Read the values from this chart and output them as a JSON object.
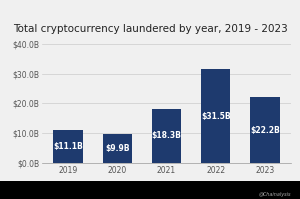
{
  "title": "Total cryptocurrency laundered by year, 2019 - 2023",
  "years": [
    "2019",
    "2020",
    "2021",
    "2022",
    "2023"
  ],
  "values": [
    11.1,
    9.9,
    18.3,
    31.5,
    22.2
  ],
  "labels": [
    "$11.1B",
    "$9.9B",
    "$18.3B",
    "$31.5B",
    "$22.2B"
  ],
  "bar_color": "#1e3a6e",
  "background_color": "#f0f0f0",
  "plot_bg_color": "#f0f0f0",
  "ylim": [
    0,
    40
  ],
  "yticks": [
    0,
    10,
    20,
    30,
    40
  ],
  "ytick_labels": [
    "$0.0B",
    "$10.0B",
    "$20.0B",
    "$30.0B",
    "$40.0B"
  ],
  "title_fontsize": 7.5,
  "tick_fontsize": 5.5,
  "label_fontsize": 5.5,
  "watermark": "@Chainalysis",
  "bottom_bar_color": "#000000"
}
